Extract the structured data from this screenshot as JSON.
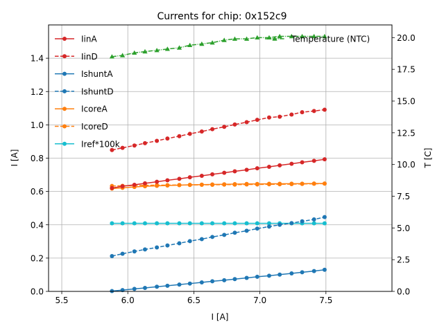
{
  "chart_data": {
    "type": "line",
    "title": "Currents for chip: 0x152c9",
    "xlabel": "I [A]",
    "ylabel": "I [A]",
    "y2label": "T [C]",
    "xlim": [
      5.4,
      8.0
    ],
    "ylim": [
      0,
      1.6
    ],
    "y2lim": [
      0,
      21
    ],
    "xticks": [
      "5.5",
      "6.0",
      "6.5",
      "7.0",
      "7.5"
    ],
    "xtick_values": [
      5.5,
      6.0,
      6.5,
      7.0,
      7.5
    ],
    "yticks": [
      "0.0",
      "0.2",
      "0.4",
      "0.6",
      "0.8",
      "1.0",
      "1.2",
      "1.4"
    ],
    "ytick_values": [
      0,
      0.2,
      0.4,
      0.6,
      0.8,
      1.0,
      1.2,
      1.4
    ],
    "y2ticks": [
      "0.0",
      "2.5",
      "5.0",
      "7.5",
      "10.0",
      "12.5",
      "15.0",
      "17.5",
      "20.0"
    ],
    "y2tick_values": [
      0,
      2.5,
      5.0,
      7.5,
      10.0,
      12.5,
      15.0,
      17.5,
      20.0
    ],
    "grid": true,
    "legend_position": "top-left",
    "legend2_position": "top-right",
    "x": [
      5.88,
      5.96,
      6.05,
      6.13,
      6.22,
      6.3,
      6.39,
      6.47,
      6.56,
      6.64,
      6.73,
      6.81,
      6.9,
      6.98,
      7.07,
      7.15,
      7.24,
      7.32,
      7.41,
      7.49
    ],
    "series": [
      {
        "name": "IinA",
        "color": "#d62728",
        "style": "solid",
        "axis": "left",
        "values": [
          0.621,
          0.631,
          0.64,
          0.649,
          0.658,
          0.667,
          0.676,
          0.685,
          0.694,
          0.703,
          0.712,
          0.721,
          0.73,
          0.739,
          0.748,
          0.757,
          0.766,
          0.775,
          0.784,
          0.793
        ]
      },
      {
        "name": "IinD",
        "color": "#d62728",
        "style": "dashed",
        "axis": "left",
        "values": [
          0.849,
          0.862,
          0.876,
          0.89,
          0.904,
          0.918,
          0.932,
          0.946,
          0.96,
          0.974,
          0.988,
          1.002,
          1.016,
          1.03,
          1.044,
          1.049,
          1.062,
          1.076,
          1.083,
          1.091
        ]
      },
      {
        "name": "IshuntA",
        "color": "#1f77b4",
        "style": "solid",
        "axis": "left",
        "values": [
          0.002,
          0.008,
          0.015,
          0.021,
          0.028,
          0.034,
          0.041,
          0.047,
          0.054,
          0.061,
          0.067,
          0.074,
          0.081,
          0.088,
          0.094,
          0.101,
          0.108,
          0.115,
          0.122,
          0.13
        ]
      },
      {
        "name": "IshuntD",
        "color": "#1f77b4",
        "style": "dashed",
        "axis": "left",
        "values": [
          0.212,
          0.226,
          0.24,
          0.252,
          0.264,
          0.276,
          0.289,
          0.302,
          0.314,
          0.327,
          0.339,
          0.352,
          0.364,
          0.377,
          0.389,
          0.4,
          0.41,
          0.421,
          0.432,
          0.446
        ]
      },
      {
        "name": "IcoreA",
        "color": "#ff7f0e",
        "style": "solid",
        "axis": "left",
        "values": [
          0.617,
          0.622,
          0.627,
          0.631,
          0.634,
          0.636,
          0.638,
          0.64,
          0.641,
          0.642,
          0.643,
          0.644,
          0.645,
          0.645,
          0.646,
          0.646,
          0.647,
          0.647,
          0.648,
          0.648
        ]
      },
      {
        "name": "IcoreD",
        "color": "#ff7f0e",
        "style": "dashed",
        "axis": "left",
        "values": [
          0.633,
          0.634,
          0.636,
          0.637,
          0.638,
          0.638,
          0.639,
          0.639,
          0.64,
          0.64,
          0.641,
          0.641,
          0.642,
          0.642,
          0.643,
          0.643,
          0.644,
          0.645,
          0.646,
          0.647
        ]
      },
      {
        "name": "Iref*100k",
        "color": "#17becf",
        "style": "solid",
        "axis": "left",
        "values": [
          0.409,
          0.409,
          0.409,
          0.409,
          0.409,
          0.409,
          0.409,
          0.409,
          0.409,
          0.409,
          0.409,
          0.409,
          0.409,
          0.409,
          0.409,
          0.409,
          0.409,
          0.409,
          0.409,
          0.409
        ]
      },
      {
        "name": "Temperature (NTC)",
        "color": "#2ca02c",
        "style": "dashdot",
        "marker": "triangle",
        "axis": "right",
        "values": [
          18.5,
          18.6,
          18.8,
          18.9,
          19.0,
          19.1,
          19.2,
          19.4,
          19.5,
          19.6,
          19.8,
          19.9,
          19.9,
          20.0,
          20.0,
          20.1,
          20.1,
          20.1,
          20.1,
          20.1
        ]
      }
    ]
  }
}
